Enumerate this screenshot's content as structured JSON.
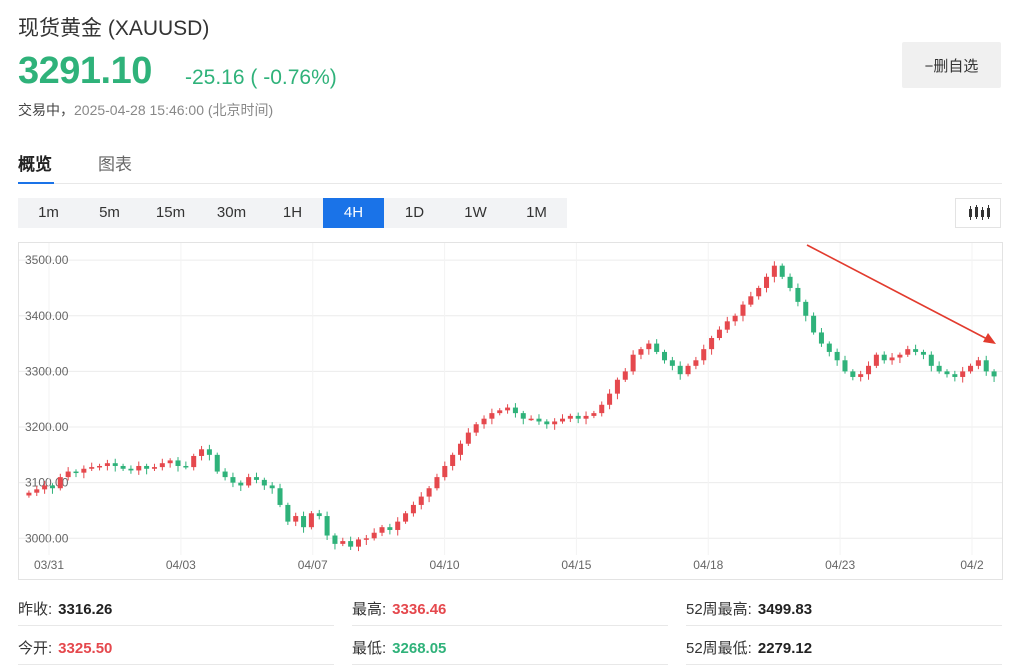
{
  "header": {
    "title": "现货黄金 (XAUUSD)",
    "price": "3291.10",
    "change": "-25.16 ( -0.76%)",
    "status": "交易中，",
    "timestamp": "2025-04-28 15:46:00",
    "timezone": "(北京时间)",
    "watch_button": "−删自选"
  },
  "tabs": [
    {
      "label": "概览",
      "active": true
    },
    {
      "label": "图表",
      "active": false
    }
  ],
  "periods": [
    {
      "label": "1m",
      "active": false
    },
    {
      "label": "5m",
      "active": false
    },
    {
      "label": "15m",
      "active": false
    },
    {
      "label": "30m",
      "active": false
    },
    {
      "label": "1H",
      "active": false
    },
    {
      "label": "4H",
      "active": true
    },
    {
      "label": "1D",
      "active": false
    },
    {
      "label": "1W",
      "active": false
    },
    {
      "label": "1M",
      "active": false
    }
  ],
  "chart_type_icon": "candlestick-icon",
  "colors": {
    "up": "#e5484d",
    "down": "#2fb27a",
    "accent": "#1a73e8",
    "annotation": "#e23b2e"
  },
  "chart_data": {
    "type": "candlestick",
    "y_ticks": [
      "3500.00",
      "3400.00",
      "3300.00",
      "3200.00",
      "3100.00",
      "3000.00"
    ],
    "x_ticks": [
      "03/31",
      "04/03",
      "04/07",
      "04/10",
      "04/15",
      "04/18",
      "04/23",
      "04/2"
    ],
    "ylim": [
      2970,
      3520
    ],
    "grid": true,
    "annotation": "downward-trend-arrow",
    "closes": [
      3082,
      3088,
      3095,
      3090,
      3110,
      3120,
      3118,
      3125,
      3128,
      3130,
      3135,
      3130,
      3125,
      3122,
      3130,
      3125,
      3128,
      3135,
      3140,
      3130,
      3128,
      3148,
      3160,
      3150,
      3120,
      3110,
      3100,
      3095,
      3110,
      3105,
      3095,
      3090,
      3060,
      3030,
      3040,
      3020,
      3045,
      3040,
      3005,
      2990,
      2995,
      2985,
      2998,
      3000,
      3010,
      3020,
      3015,
      3030,
      3045,
      3060,
      3075,
      3090,
      3110,
      3130,
      3150,
      3170,
      3190,
      3205,
      3215,
      3225,
      3230,
      3235,
      3225,
      3215,
      3215,
      3210,
      3205,
      3210,
      3215,
      3220,
      3215,
      3220,
      3225,
      3240,
      3260,
      3285,
      3300,
      3330,
      3340,
      3350,
      3335,
      3320,
      3310,
      3295,
      3310,
      3320,
      3340,
      3360,
      3375,
      3390,
      3400,
      3420,
      3435,
      3450,
      3470,
      3490,
      3470,
      3450,
      3425,
      3400,
      3370,
      3350,
      3335,
      3320,
      3300,
      3290,
      3295,
      3310,
      3330,
      3320,
      3325,
      3330,
      3340,
      3335,
      3330,
      3310,
      3300,
      3295,
      3290,
      3300,
      3310,
      3320,
      3300,
      3291
    ]
  },
  "stats": [
    {
      "label": "昨收:",
      "value": "3316.26",
      "tone": "neutral"
    },
    {
      "label": "最高:",
      "value": "3336.46",
      "tone": "up"
    },
    {
      "label": "52周最高:",
      "value": "3499.83",
      "tone": "neutral"
    },
    {
      "label": "今开:",
      "value": "3325.50",
      "tone": "up"
    },
    {
      "label": "最低:",
      "value": "3268.05",
      "tone": "down"
    },
    {
      "label": "52周最低:",
      "value": "2279.12",
      "tone": "neutral"
    }
  ]
}
